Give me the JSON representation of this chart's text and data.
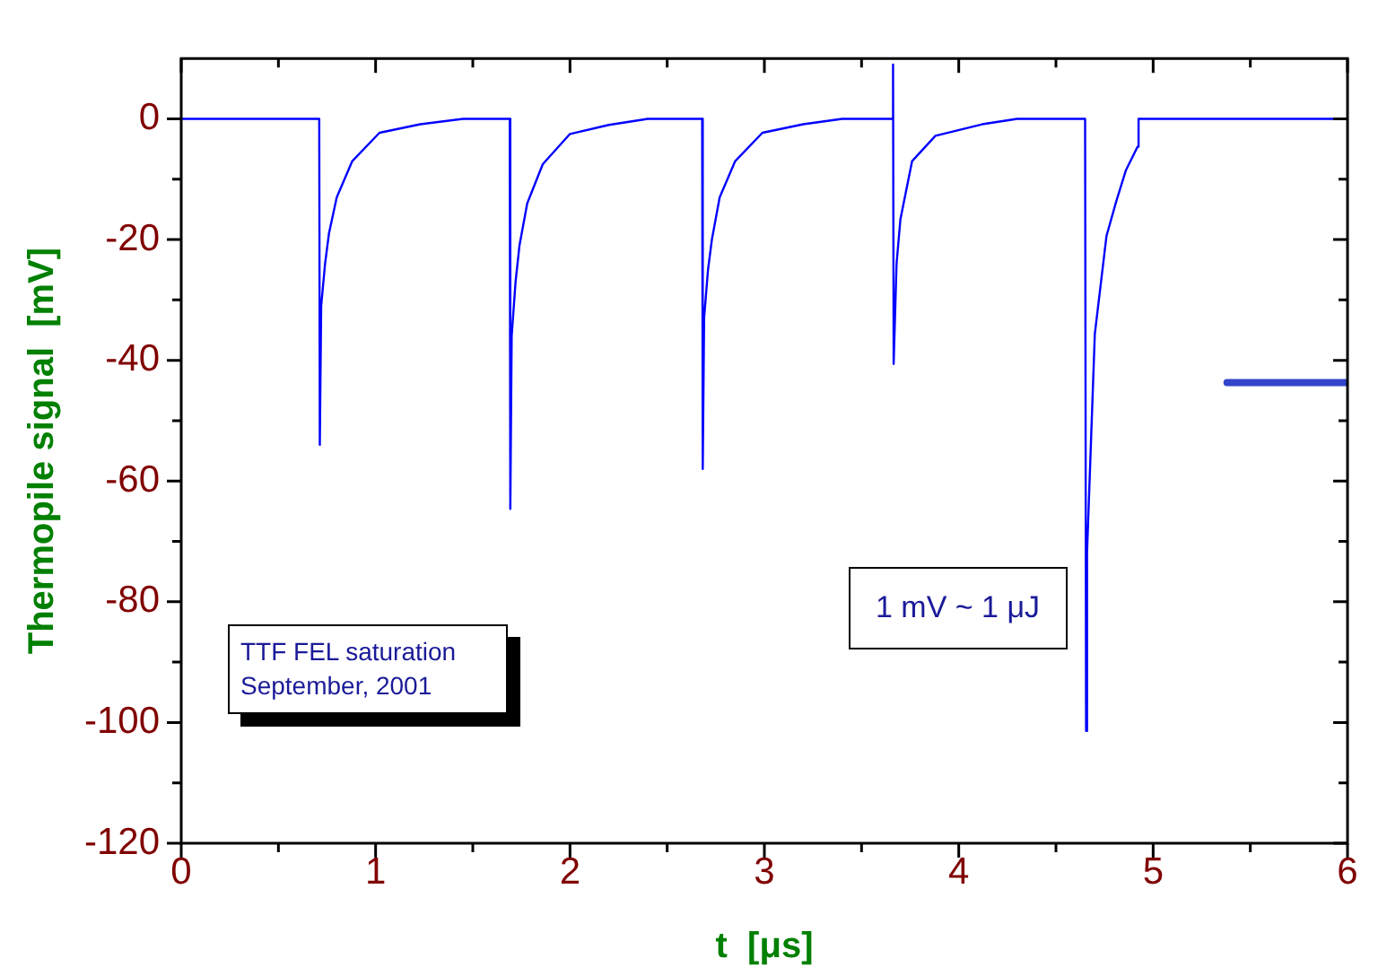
{
  "chart_data": {
    "type": "line",
    "xlabel": "t  [μs]",
    "ylabel": "Thermopile signal  [mV]",
    "xlim": [
      0,
      6
    ],
    "ylim": [
      -120,
      10
    ],
    "xticks": [
      0,
      1,
      2,
      3,
      4,
      5,
      6
    ],
    "yticks": [
      -120,
      -100,
      -80,
      -60,
      -40,
      -20,
      0
    ],
    "grid": false,
    "legend": false,
    "marker": "none",
    "line_style": "solid",
    "annotations": [
      "TTF FEL saturation\nSeptember, 2001",
      "1 mV ~ 1 μJ"
    ],
    "series": [
      {
        "color": "#0000ff",
        "x": [
          0,
          0.2,
          0.4,
          0.6,
          0.71,
          0.713,
          0.72,
          0.74,
          0.76,
          0.8,
          0.88,
          1.02,
          1.23,
          1.45,
          1.69,
          1.693,
          1.7,
          1.72,
          1.74,
          1.78,
          1.86,
          2.0,
          2.2,
          2.4,
          2.68,
          2.683,
          2.69,
          2.71,
          2.73,
          2.77,
          2.85,
          2.99,
          3.2,
          3.4,
          3.66,
          3.662,
          3.665,
          3.68,
          3.7,
          3.76,
          3.88,
          4.12,
          4.3,
          4.65,
          4.655,
          4.66,
          4.7,
          4.76,
          4.81,
          4.86,
          4.92,
          4.925,
          5.5,
          6
        ],
        "values": [
          0,
          0,
          0,
          0,
          0,
          -54,
          -31,
          -24,
          -19,
          -13,
          -7,
          -2.3,
          -0.9,
          0,
          0,
          -64.6,
          -36,
          -27,
          -21,
          -14,
          -7.5,
          -2.5,
          -1,
          0,
          0,
          -58,
          -33,
          -25,
          -20,
          -13,
          -7,
          -2.3,
          -0.9,
          0,
          0,
          9,
          -40.6,
          -24,
          -16.6,
          -7,
          -2.8,
          -0.9,
          0,
          0,
          -101.4,
          -71.8,
          -35.6,
          -19.4,
          -13.7,
          -8.5,
          -4.6,
          0,
          0,
          0
        ]
      },
      {
        "color": "#3344cc",
        "x": [
          5.38,
          6
        ],
        "values": [
          -43.7,
          -43.7
        ]
      }
    ]
  }
}
